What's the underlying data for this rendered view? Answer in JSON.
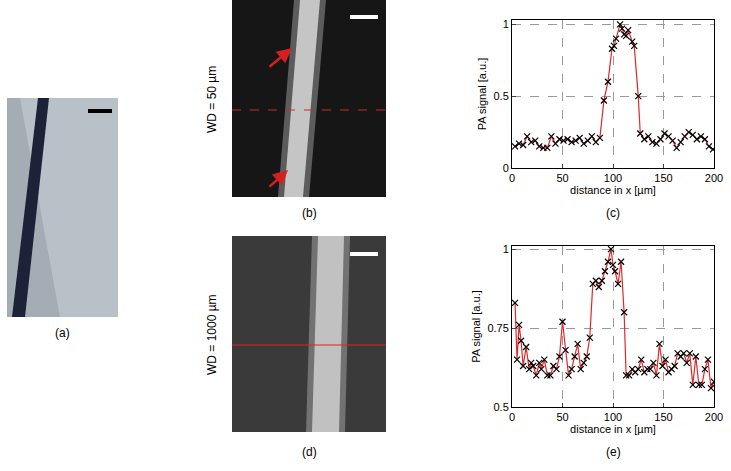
{
  "images": [
    {
      "label": "(a)"
    },
    {
      "label": "(b)",
      "side_text": "WD = 50 µm"
    },
    {
      "label": "(d)",
      "side_text": "WD = 1000 µm"
    }
  ],
  "chart_data": [
    {
      "type": "line",
      "label": "(c)",
      "x_label": "distance in x [µm]",
      "y_label": "PA signal [a.u.]",
      "color": "#e0282a",
      "marker": "x",
      "grid": true,
      "xlim": [
        0,
        200
      ],
      "xticks": [
        0,
        50,
        100,
        150,
        200
      ],
      "ylim": [
        0,
        1.03
      ],
      "yticks": [
        0,
        0.5,
        1
      ],
      "x": [
        3,
        7,
        11,
        15,
        19,
        23,
        27,
        31,
        35,
        39,
        43,
        47,
        51,
        55,
        59,
        63,
        67,
        71,
        75,
        79,
        83,
        87,
        91,
        95,
        99,
        101,
        103,
        107,
        109,
        111,
        113,
        115,
        119,
        121,
        125,
        127,
        131,
        135,
        139,
        143,
        147,
        151,
        155,
        159,
        163,
        167,
        171,
        175,
        179,
        183,
        187,
        191,
        195,
        199
      ],
      "values": [
        0.15,
        0.17,
        0.16,
        0.22,
        0.18,
        0.19,
        0.15,
        0.14,
        0.14,
        0.22,
        0.17,
        0.2,
        0.19,
        0.2,
        0.18,
        0.19,
        0.21,
        0.17,
        0.19,
        0.22,
        0.18,
        0.21,
        0.47,
        0.6,
        0.83,
        0.85,
        0.9,
        1.0,
        0.97,
        0.93,
        0.92,
        0.96,
        0.88,
        0.85,
        0.5,
        0.24,
        0.2,
        0.22,
        0.18,
        0.17,
        0.2,
        0.24,
        0.22,
        0.19,
        0.14,
        0.18,
        0.22,
        0.25,
        0.23,
        0.2,
        0.22,
        0.2,
        0.15,
        0.13
      ]
    },
    {
      "type": "line",
      "label": "(e)",
      "x_label": "distance in x [µm]",
      "y_label": "PA signal [a.u.]",
      "color": "#e0282a",
      "marker": "x",
      "grid": true,
      "xlim": [
        0,
        200
      ],
      "xticks": [
        0,
        50,
        100,
        150,
        200
      ],
      "ylim": [
        0.5,
        1.01
      ],
      "yticks": [
        0.5,
        0.75,
        1
      ],
      "x": [
        3,
        5,
        7,
        9,
        11,
        14,
        17,
        19,
        21,
        24,
        27,
        29,
        32,
        35,
        38,
        41,
        44,
        47,
        50,
        53,
        56,
        59,
        62,
        65,
        68,
        71,
        74,
        77,
        80,
        83,
        86,
        89,
        92,
        95,
        98,
        100,
        102,
        105,
        108,
        111,
        113,
        116,
        119,
        122,
        125,
        128,
        131,
        134,
        137,
        140,
        143,
        146,
        149,
        152,
        155,
        158,
        161,
        164,
        167,
        170,
        173,
        176,
        179,
        182,
        185,
        188,
        191,
        194,
        197,
        200
      ],
      "values": [
        0.83,
        0.65,
        0.76,
        0.71,
        0.63,
        0.69,
        0.62,
        0.64,
        0.63,
        0.6,
        0.64,
        0.62,
        0.65,
        0.6,
        0.6,
        0.63,
        0.62,
        0.66,
        0.77,
        0.68,
        0.6,
        0.62,
        0.66,
        0.7,
        0.62,
        0.64,
        0.66,
        0.72,
        0.89,
        0.9,
        0.88,
        0.9,
        0.93,
        0.96,
        1.0,
        0.95,
        0.93,
        0.89,
        0.96,
        0.8,
        0.6,
        0.6,
        0.62,
        0.61,
        0.62,
        0.65,
        0.61,
        0.62,
        0.62,
        0.64,
        0.6,
        0.7,
        0.63,
        0.65,
        0.61,
        0.62,
        0.63,
        0.67,
        0.66,
        0.67,
        0.64,
        0.67,
        0.57,
        0.66,
        0.57,
        0.57,
        0.62,
        0.65,
        0.56,
        0.58
      ]
    }
  ]
}
